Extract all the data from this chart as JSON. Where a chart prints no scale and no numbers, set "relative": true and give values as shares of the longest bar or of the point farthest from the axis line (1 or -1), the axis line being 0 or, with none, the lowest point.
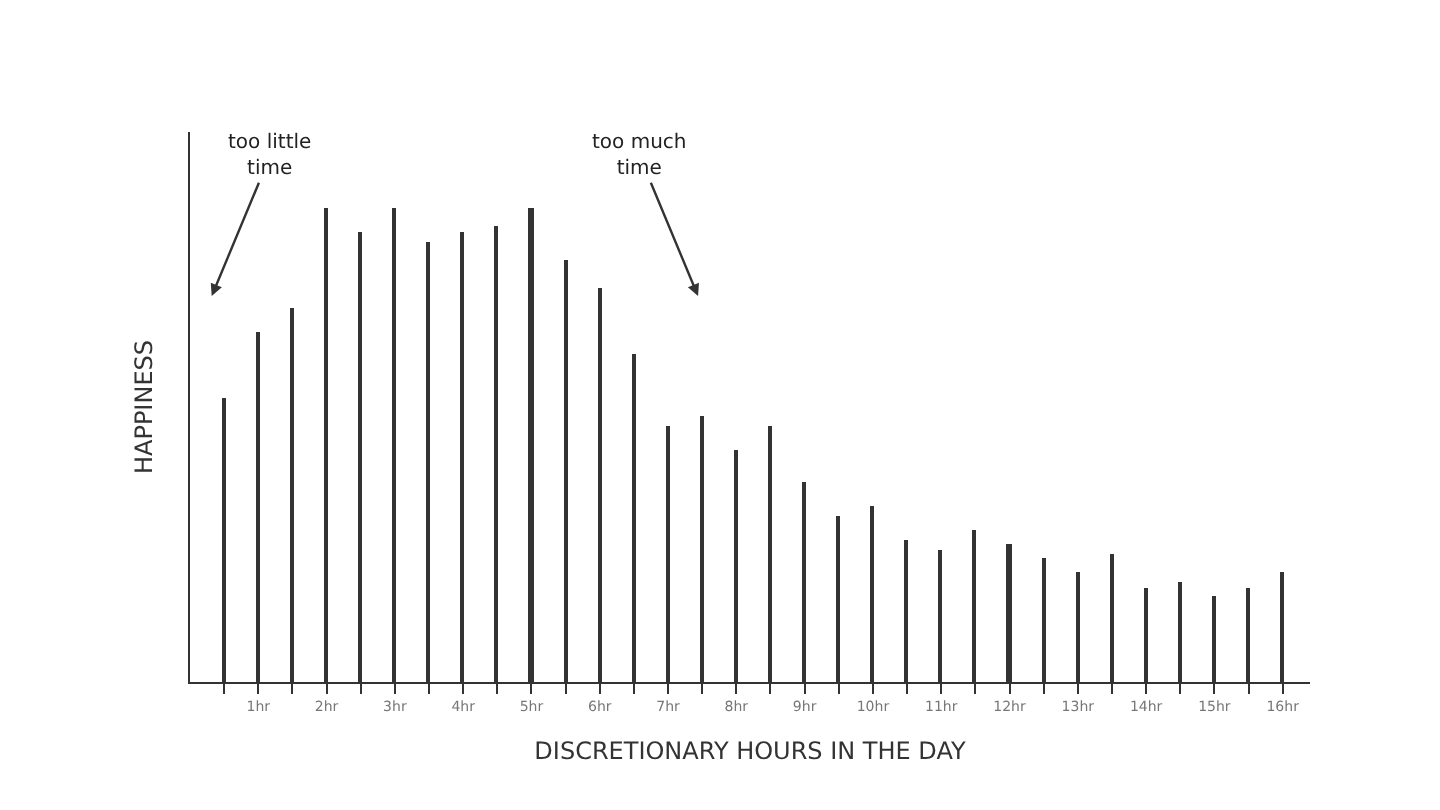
{
  "chart_data": {
    "type": "bar",
    "relative": true,
    "x": [
      0.5,
      1,
      1.5,
      2,
      2.5,
      3,
      3.5,
      4,
      4.5,
      5,
      5.5,
      6,
      6.5,
      7,
      7.5,
      8,
      8.5,
      9,
      9.5,
      10,
      10.5,
      11,
      11.5,
      12,
      12.5,
      13,
      13.5,
      14,
      14.5,
      15,
      15.5,
      16
    ],
    "values": [
      0.6,
      0.74,
      0.79,
      1.0,
      0.95,
      1.0,
      0.93,
      0.95,
      0.96,
      1.0,
      0.89,
      0.83,
      0.69,
      0.54,
      0.56,
      0.49,
      0.54,
      0.42,
      0.35,
      0.37,
      0.3,
      0.28,
      0.32,
      0.29,
      0.26,
      0.23,
      0.27,
      0.2,
      0.21,
      0.18,
      0.2,
      0.23
    ],
    "color": "#333333",
    "xlim": [
      0,
      16.4
    ],
    "xticks": [
      {
        "value": 0.5,
        "label": null
      },
      {
        "value": 1,
        "label": "1hr"
      },
      {
        "value": 1.5,
        "label": null
      },
      {
        "value": 2,
        "label": "2hr"
      },
      {
        "value": 2.5,
        "label": null
      },
      {
        "value": 3,
        "label": "3hr"
      },
      {
        "value": 3.5,
        "label": null
      },
      {
        "value": 4,
        "label": "4hr"
      },
      {
        "value": 4.5,
        "label": null
      },
      {
        "value": 5,
        "label": "5hr"
      },
      {
        "value": 5.5,
        "label": null
      },
      {
        "value": 6,
        "label": "6hr"
      },
      {
        "value": 6.5,
        "label": null
      },
      {
        "value": 7,
        "label": "7hr"
      },
      {
        "value": 7.5,
        "label": null
      },
      {
        "value": 8,
        "label": "8hr"
      },
      {
        "value": 8.5,
        "label": null
      },
      {
        "value": 9,
        "label": "9hr"
      },
      {
        "value": 9.5,
        "label": null
      },
      {
        "value": 10,
        "label": "10hr"
      },
      {
        "value": 10.5,
        "label": null
      },
      {
        "value": 11,
        "label": "11hr"
      },
      {
        "value": 11.5,
        "label": null
      },
      {
        "value": 12,
        "label": "12hr"
      },
      {
        "value": 12.5,
        "label": null
      },
      {
        "value": 13,
        "label": "13hr"
      },
      {
        "value": 13.5,
        "label": null
      },
      {
        "value": 14,
        "label": "14hr"
      },
      {
        "value": 14.5,
        "label": null
      },
      {
        "value": 15,
        "label": "15hr"
      },
      {
        "value": 15.5,
        "label": null
      },
      {
        "value": 16,
        "label": "16hr"
      }
    ],
    "xlabel": "DISCRETIONARY HOURS IN THE DAY",
    "ylabel": "HAPPINESS",
    "annotations": [
      "too little time",
      "too much time"
    ]
  }
}
